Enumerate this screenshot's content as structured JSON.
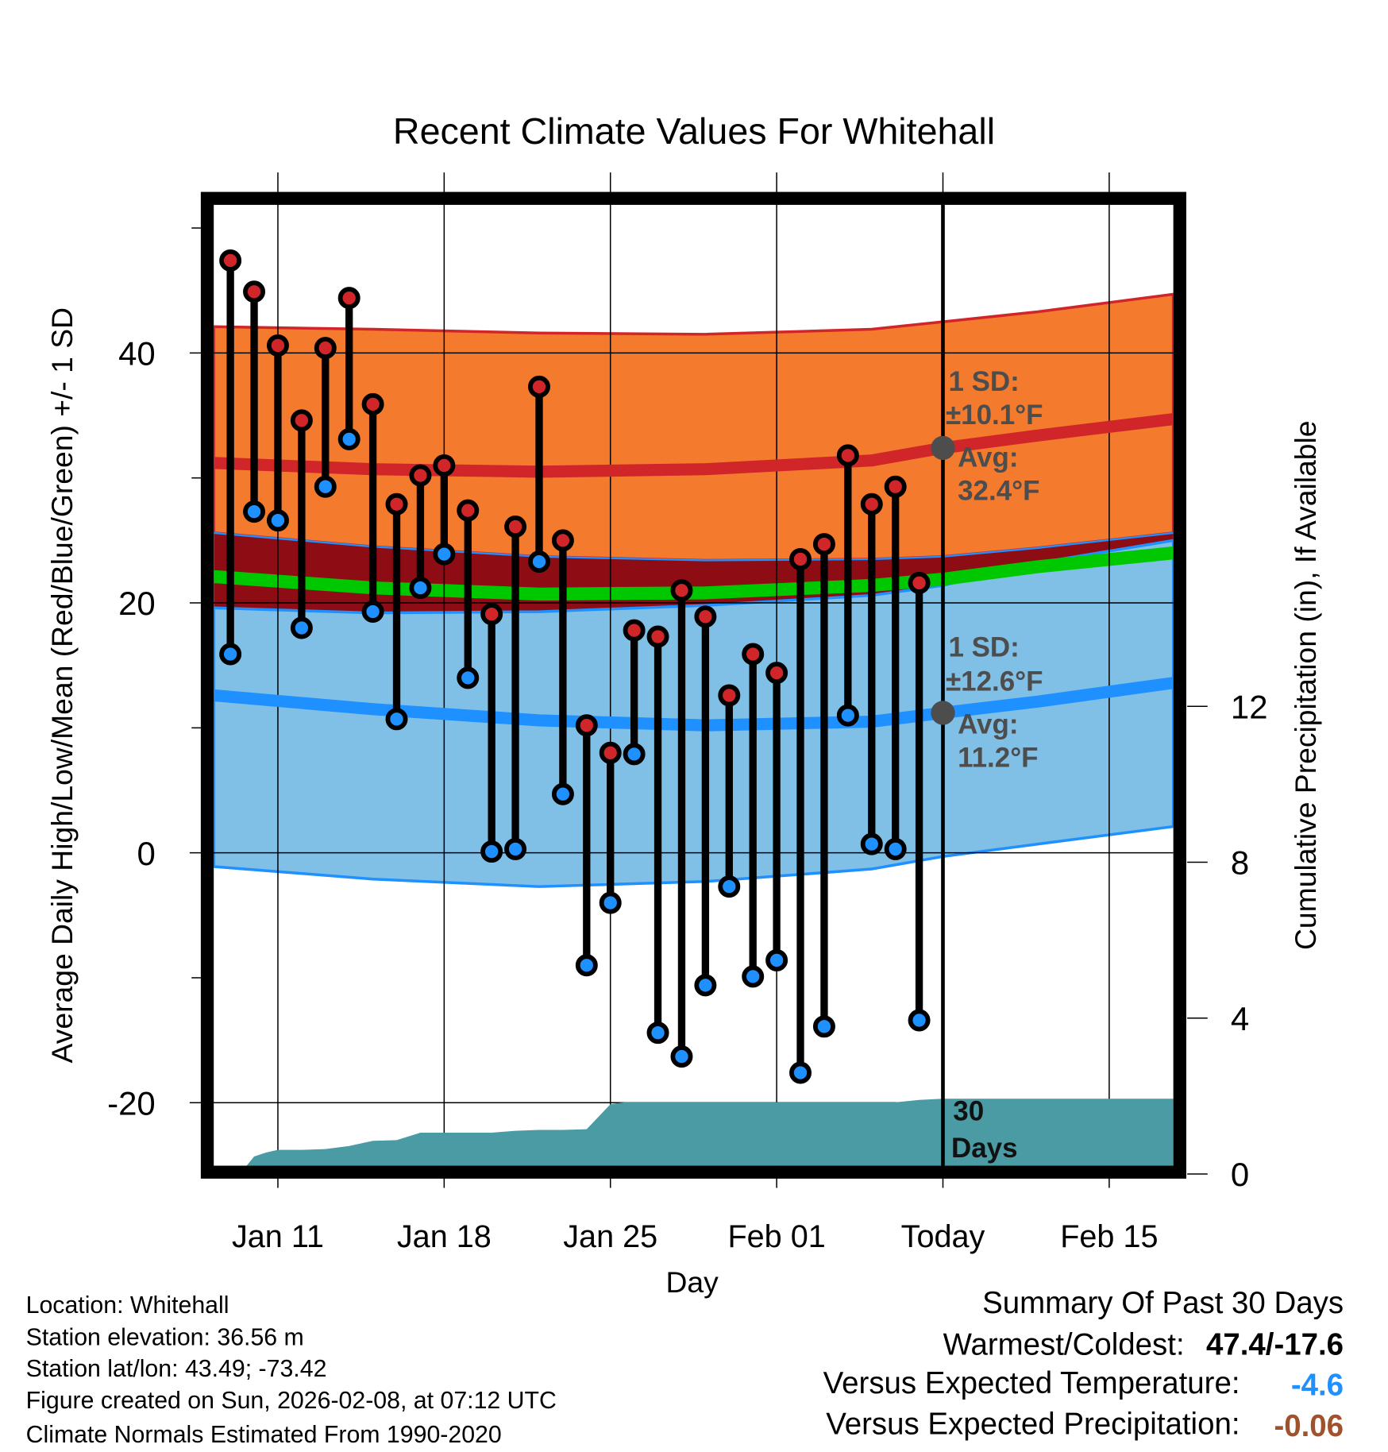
{
  "chart_data": {
    "type": "line",
    "title": "Recent Climate Values For Whitehall",
    "xlabel": "Day",
    "ylabel": "Average Daily High/Low/Mean (Red/Blue/Green) +/- 1 SD",
    "ylabel_right": "Cumulative Precipitation (in), If Available",
    "xlim_day_of_year": [
      8.3,
      48.7
    ],
    "ylim": [
      -26,
      51.9
    ],
    "ylim_right": [
      -0.2,
      0
    ],
    "y_ticks": [
      -20,
      0,
      20,
      40
    ],
    "y_minor_ticks": [
      -10,
      10,
      30,
      50
    ],
    "y_right_ticks": [
      0,
      4,
      8,
      12
    ],
    "x_ticks": [
      {
        "day": 11,
        "label": "Jan 11"
      },
      {
        "day": 18,
        "label": "Jan 18"
      },
      {
        "day": 25,
        "label": "Jan 25"
      },
      {
        "day": 32,
        "label": "Feb 01"
      },
      {
        "day": 39,
        "label": "Today"
      },
      {
        "day": 46,
        "label": "Feb 15"
      }
    ],
    "grid": true,
    "today_day": 39,
    "daily": {
      "days": [
        9,
        10,
        11,
        12,
        13,
        14,
        15,
        16,
        17,
        18,
        19,
        20,
        21,
        22,
        23,
        24,
        25,
        26,
        27,
        28,
        29,
        30,
        31,
        32,
        33,
        34,
        35,
        36,
        37,
        38
      ],
      "high": [
        47.4,
        44.9,
        40.6,
        34.6,
        40.4,
        44.4,
        35.9,
        27.9,
        30.2,
        31.0,
        27.4,
        19.1,
        26.1,
        37.3,
        25.0,
        10.2,
        8.0,
        17.8,
        17.3,
        21.0,
        18.9,
        12.6,
        15.9,
        14.4,
        23.5,
        24.7,
        31.8,
        27.9,
        29.3,
        21.6
      ],
      "low": [
        15.9,
        27.3,
        26.6,
        18.0,
        29.3,
        33.1,
        19.3,
        10.7,
        21.2,
        23.9,
        14.0,
        0.1,
        0.3,
        23.3,
        4.7,
        -9.0,
        -4.0,
        7.9,
        -14.4,
        -16.3,
        -10.6,
        -2.7,
        -9.9,
        -8.6,
        -17.6,
        -13.9,
        11.0,
        0.7,
        0.3,
        -13.4
      ]
    },
    "normals": {
      "days": [
        8.3,
        15,
        22,
        29,
        36,
        39,
        43,
        48.7
      ],
      "high_upper": [
        42.1,
        41.9,
        41.6,
        41.5,
        41.9,
        42.5,
        43.3,
        44.7
      ],
      "high_mean": [
        31.2,
        30.7,
        30.5,
        30.7,
        31.4,
        32.4,
        33.4,
        34.7
      ],
      "high_lower": [
        25.6,
        24.5,
        23.7,
        23.4,
        23.5,
        23.7,
        24.4,
        25.6
      ],
      "mean": [
        22.1,
        21.2,
        20.7,
        20.8,
        21.4,
        21.9,
        22.9,
        24.0
      ],
      "low_upper": [
        19.6,
        19.2,
        19.3,
        19.8,
        20.6,
        21.4,
        23.2,
        25.0
      ],
      "low_mean": [
        12.6,
        11.5,
        10.6,
        10.2,
        10.5,
        11.2,
        12.1,
        13.6
      ],
      "low_lower": [
        -1.1,
        -2.1,
        -2.7,
        -2.3,
        -1.3,
        -0.3,
        0.7,
        2.1
      ]
    },
    "precip_cumulative": {
      "days": [
        9.4,
        10,
        10.5,
        11,
        12,
        13,
        14,
        15,
        16,
        17,
        18,
        19,
        20,
        21,
        22,
        23,
        24,
        25,
        25.6,
        26,
        37,
        38,
        39,
        48.7
      ],
      "values": [
        0,
        0.45,
        0.55,
        0.62,
        0.62,
        0.64,
        0.72,
        0.85,
        0.87,
        1.06,
        1.06,
        1.06,
        1.06,
        1.11,
        1.13,
        1.13,
        1.15,
        1.79,
        1.84,
        1.84,
        1.84,
        1.9,
        1.93,
        1.93
      ]
    },
    "annotations": {
      "high_sd": "1 SD:",
      "high_sd_value": "±10.1°F",
      "high_avg": "Avg:",
      "high_avg_value": "32.4°F",
      "low_sd": "1 SD:",
      "low_sd_value": "±12.6°F",
      "low_avg": "Avg:",
      "low_avg_value": "11.2°F",
      "precip_days": "30",
      "precip_days_label": "Days"
    },
    "colors": {
      "high_band": "#f47a2e",
      "overlap_band": "#8e0c14",
      "mean_line": "#00c800",
      "low_band": "#80bfe6",
      "high_line": "#d0262a",
      "low_line": "#1e90ff",
      "precip": "#4a9ba3",
      "annotation": "#4d4d4d"
    }
  },
  "footer": {
    "location": "Location: Whitehall",
    "elevation": "Station elevation: 36.56 m",
    "latlon": "Station lat/lon: 43.49; -73.42",
    "created": "Figure created on Sun, 2026-02-08, at 07:12 UTC",
    "normals": "Climate Normals Estimated From 1990-2020"
  },
  "summary": {
    "title": "Summary Of Past 30 Days",
    "warmest_coldest_label": "Warmest/Coldest:",
    "warmest_coldest_value": "47.4/-17.6",
    "temp_label": "Versus Expected Temperature:",
    "temp_value": "-4.6",
    "temp_color": "#1e90ff",
    "precip_label": "Versus Expected Precipitation:",
    "precip_value": "-0.06",
    "precip_color": "#a0522d"
  }
}
